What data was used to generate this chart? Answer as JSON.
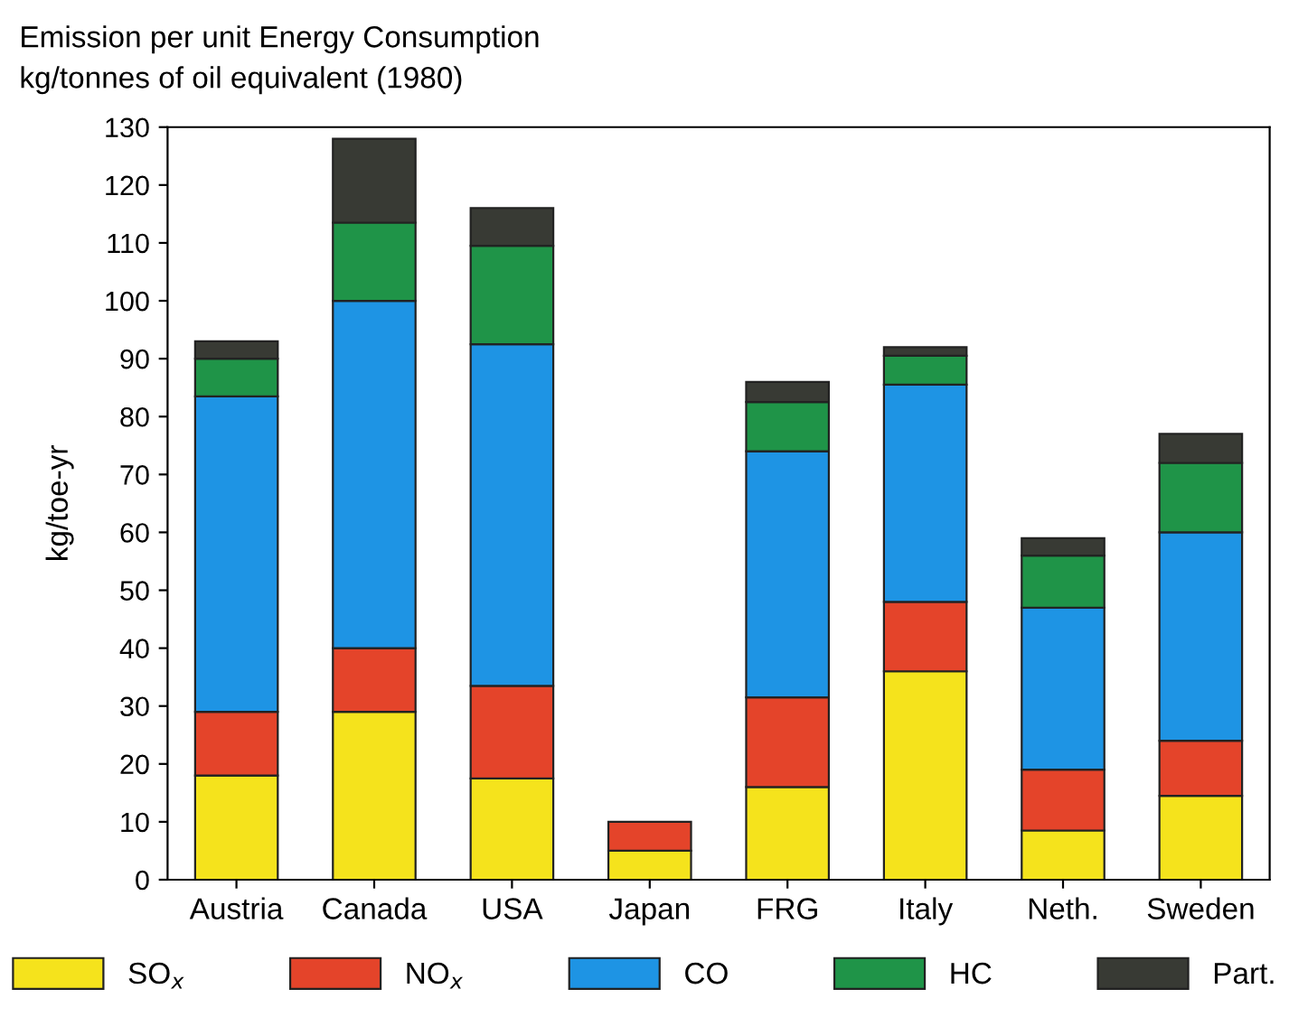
{
  "chart_data": {
    "type": "bar",
    "stacked": true,
    "title": "Emission per unit Energy Consumption",
    "subtitle": "kg/tonnes of oil equivalent (1980)",
    "ylabel": "kg/toe-yr",
    "categories": [
      "Austria",
      "Canada",
      "USA",
      "Japan",
      "FRG",
      "Italy",
      "Neth.",
      "Sweden"
    ],
    "series": [
      {
        "name": "SO$_{x}$",
        "color": "#f5e31c",
        "values": [
          18,
          29,
          17.5,
          5,
          16,
          36,
          8.5,
          14.5
        ]
      },
      {
        "name": "NO$_{x}$",
        "color": "#e4442a",
        "values": [
          11,
          11,
          16,
          5,
          15.5,
          12,
          10.5,
          9.5
        ]
      },
      {
        "name": "CO",
        "color": "#1e94e4",
        "values": [
          54.5,
          60,
          59,
          null,
          42.5,
          37.5,
          28,
          36
        ]
      },
      {
        "name": "HC",
        "color": "#1f9448",
        "values": [
          6.5,
          13.5,
          17,
          null,
          8.5,
          5,
          9,
          12
        ]
      },
      {
        "name": "Part.",
        "color": "#383a34",
        "values": [
          3,
          14.5,
          6.5,
          null,
          3.5,
          1.5,
          3,
          5
        ]
      }
    ],
    "ylim": [
      0,
      130
    ],
    "yticks": [
      0,
      10,
      20,
      30,
      40,
      50,
      60,
      70,
      80,
      90,
      100,
      110,
      120,
      130
    ],
    "grid": false,
    "legend": "bottom"
  }
}
